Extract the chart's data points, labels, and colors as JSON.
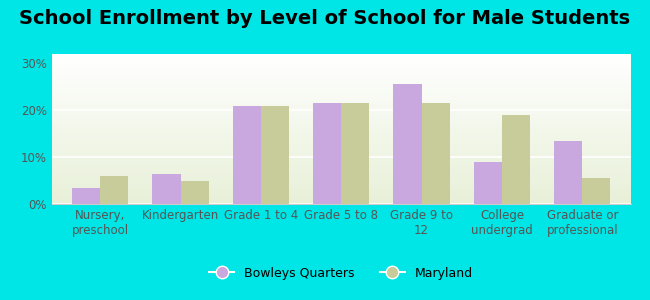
{
  "title": "School Enrollment by Level of School for Male Students",
  "categories": [
    "Nursery,\npreschool",
    "Kindergarten",
    "Grade 1 to 4",
    "Grade 5 to 8",
    "Grade 9 to\n12",
    "College\nundergrad",
    "Graduate or\nprofessional"
  ],
  "bowleys_quarters": [
    3.5,
    6.5,
    21.0,
    21.5,
    25.5,
    9.0,
    13.5
  ],
  "maryland": [
    6.0,
    5.0,
    21.0,
    21.5,
    21.5,
    19.0,
    5.5
  ],
  "bar_color_bq": "#c9a8e0",
  "bar_color_md": "#c8cc9a",
  "background_color": "#00e5e5",
  "ylabel_ticks": [
    "0%",
    "10%",
    "20%",
    "30%"
  ],
  "yticks": [
    0,
    10,
    20,
    30
  ],
  "ylim": [
    0,
    32
  ],
  "legend_label_bq": "Bowleys Quarters",
  "legend_label_md": "Maryland",
  "title_fontsize": 14,
  "tick_fontsize": 8.5,
  "legend_fontsize": 9
}
